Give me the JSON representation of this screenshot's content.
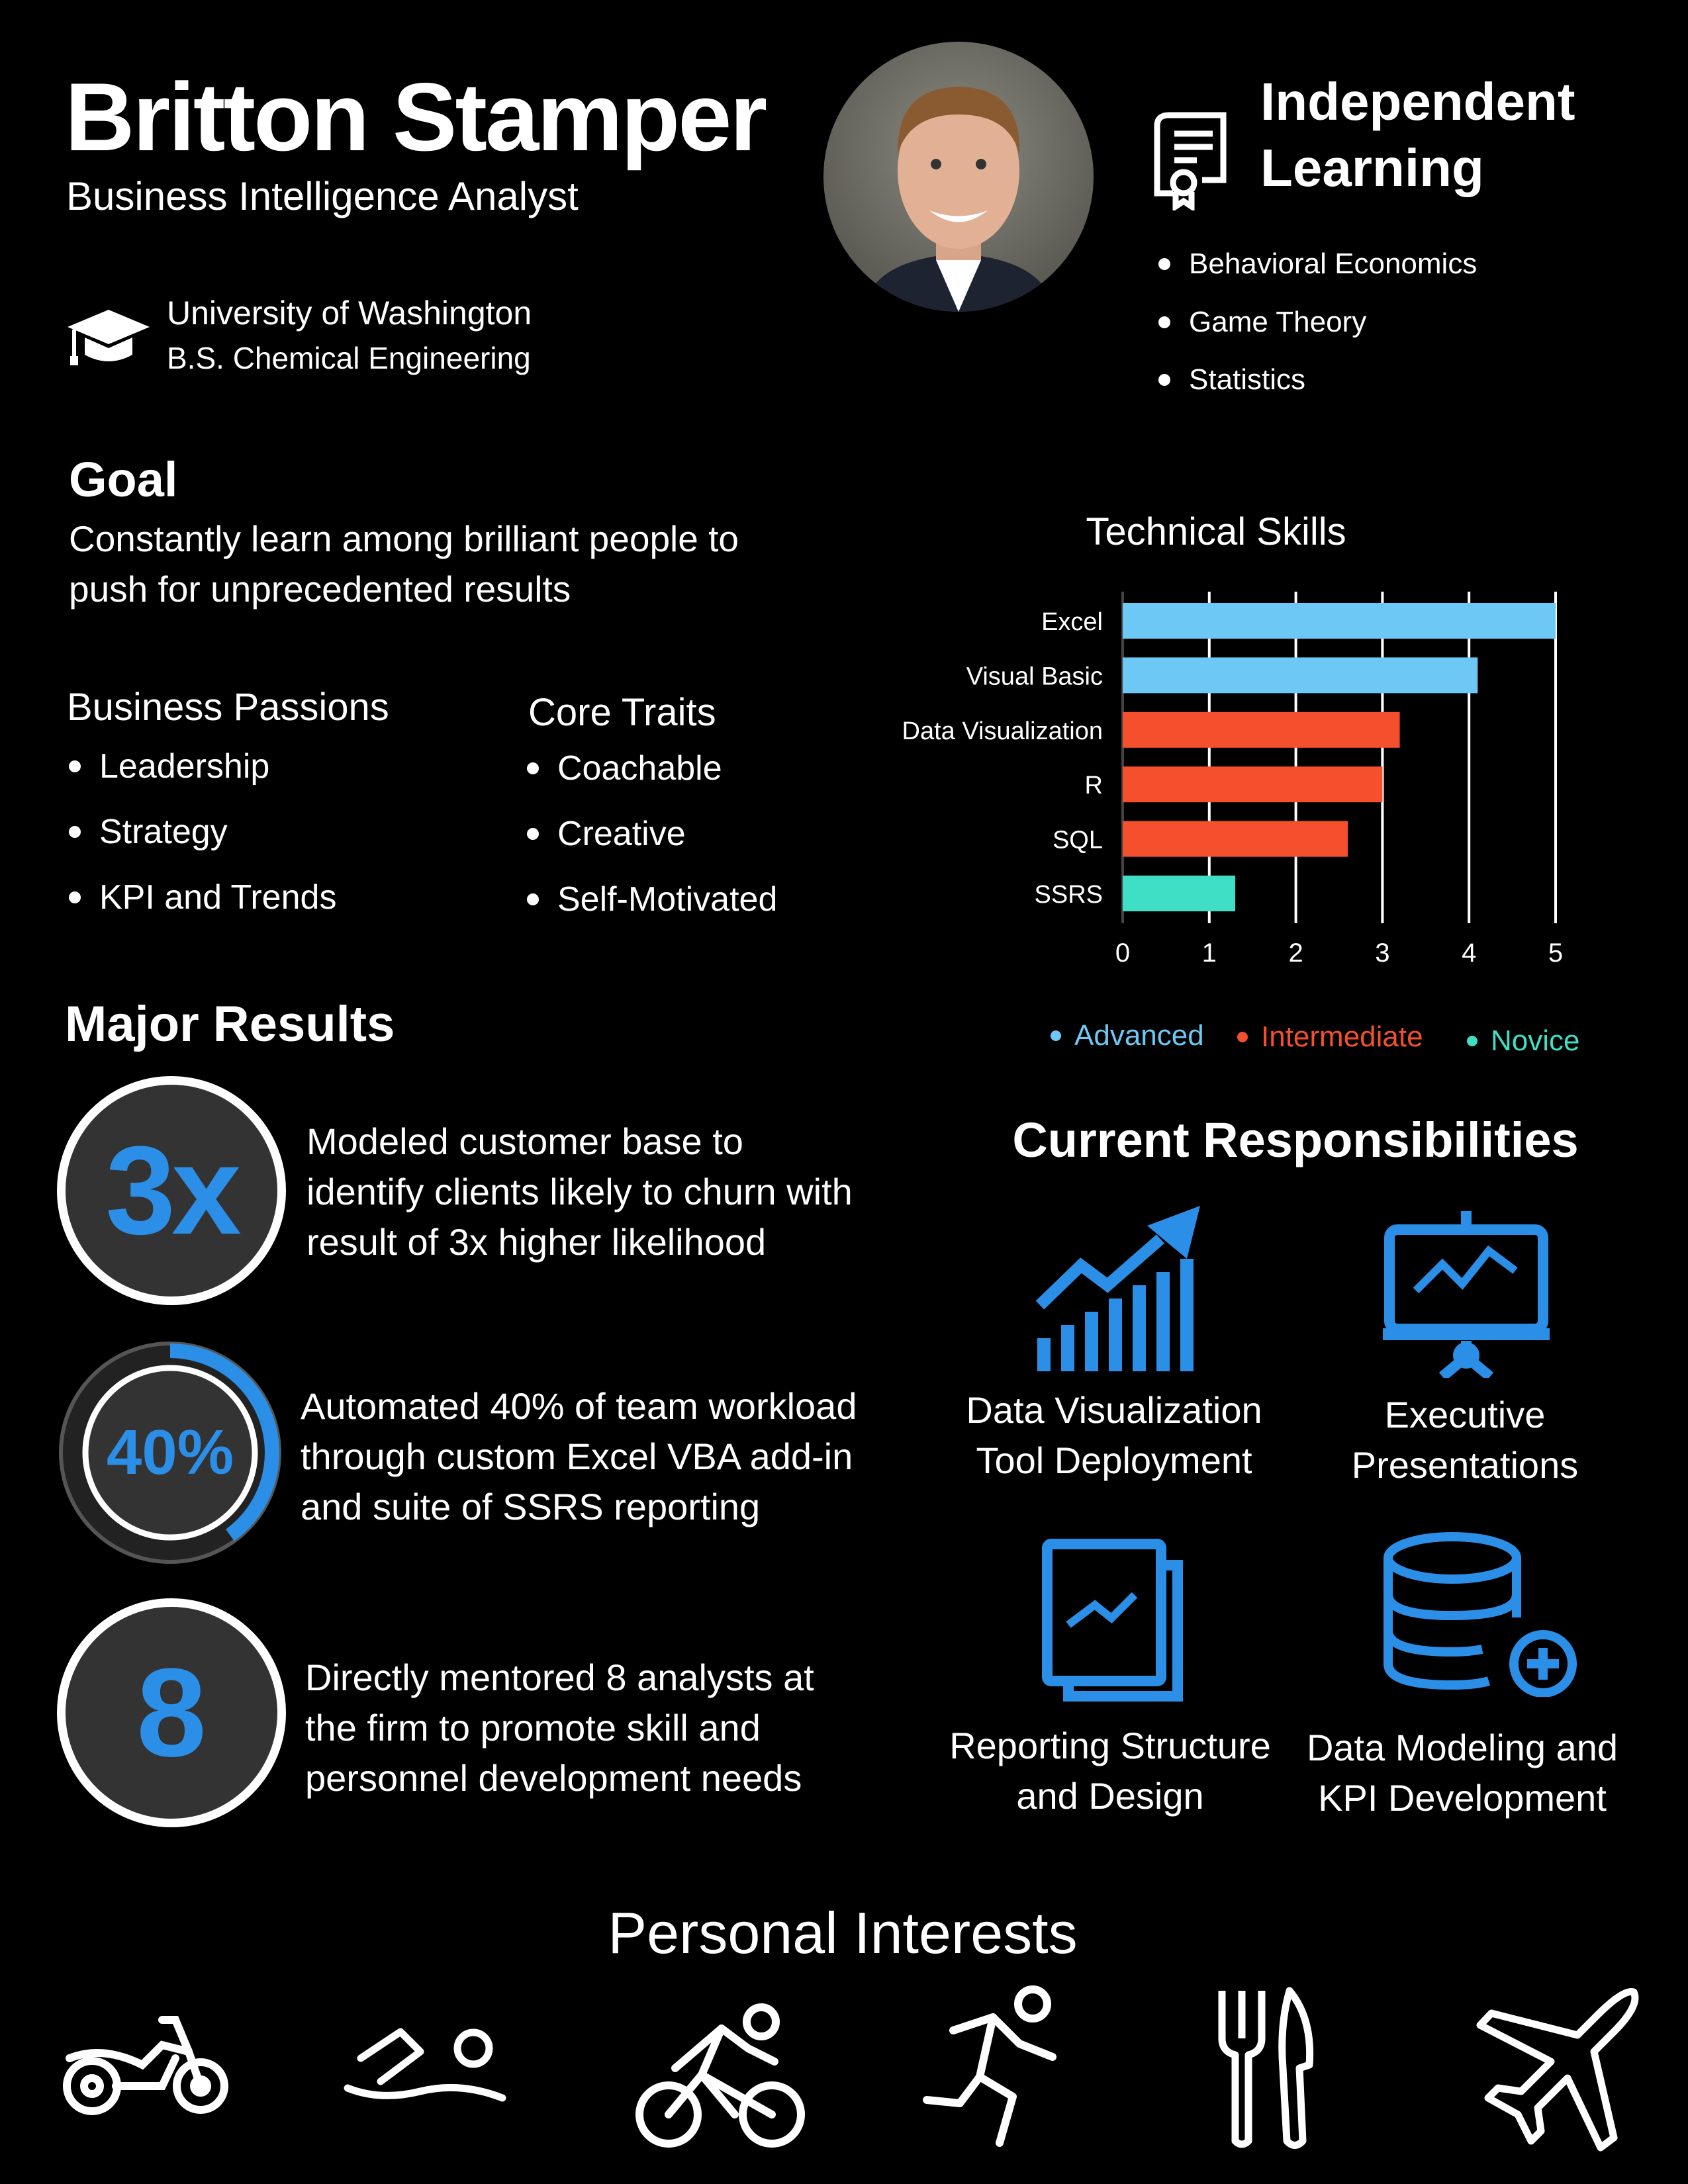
{
  "header": {
    "name": "Britton Stamper",
    "title": "Business Intelligence Analyst"
  },
  "education": {
    "school": "University of Washington",
    "degree": "B.S. Chemical Engineering",
    "icon": "graduation-cap-icon"
  },
  "independent_learning": {
    "title_line1": "Independent",
    "title_line2": "Learning",
    "icon": "certificate-icon",
    "items": [
      "Behavioral Economics",
      "Game Theory",
      "Statistics"
    ]
  },
  "goal": {
    "heading": "Goal",
    "line1": "Constantly learn among brilliant people to",
    "line2": "push for unprecedented results"
  },
  "passions": {
    "heading": "Business Passions",
    "items": [
      "Leadership",
      "Strategy",
      "KPI and Trends"
    ]
  },
  "traits": {
    "heading": "Core Traits",
    "items": [
      "Coachable",
      "Creative",
      "Self-Motivated"
    ]
  },
  "chart_data": {
    "type": "bar",
    "orientation": "horizontal",
    "title": "Technical Skills",
    "categories": [
      "Excel",
      "Visual Basic",
      "Data Visualization",
      "R",
      "SQL",
      "SSRS"
    ],
    "values": [
      5,
      4.1,
      3.2,
      3,
      2.6,
      1.3
    ],
    "levels": [
      "Advanced",
      "Advanced",
      "Intermediate",
      "Intermediate",
      "Intermediate",
      "Novice"
    ],
    "xlim": [
      0,
      5
    ],
    "xticks": [
      "0",
      "1",
      "2",
      "3",
      "4",
      "5"
    ],
    "grid": true,
    "legend": {
      "position": "bottom",
      "entries": [
        {
          "name": "Advanced",
          "color": "#6dc8f5"
        },
        {
          "name": "Intermediate",
          "color": "#f5502d"
        },
        {
          "name": "Novice",
          "color": "#3edfc4"
        }
      ]
    }
  },
  "results": {
    "heading": "Major Results",
    "items": [
      {
        "badge": "3x",
        "lines": [
          "Modeled customer base to",
          "identify clients likely to churn with",
          "result of 3x higher likelihood"
        ]
      },
      {
        "badge": "40%",
        "progress": 0.4,
        "lines": [
          "Automated 40% of team workload",
          "through custom Excel VBA add-in",
          "and suite of SSRS reporting"
        ]
      },
      {
        "badge": "8",
        "lines": [
          "Directly mentored 8 analysts at",
          "the firm to promote skill and",
          "personnel development needs"
        ]
      }
    ]
  },
  "responsibilities": {
    "heading": "Current Responsibilities",
    "items": [
      {
        "icon": "bar-chart-growth-icon",
        "line1": "Data Visualization",
        "line2": "Tool Deployment"
      },
      {
        "icon": "presentation-board-icon",
        "line1": "Executive",
        "line2": "Presentations"
      },
      {
        "icon": "report-document-icon",
        "line1": "Reporting Structure",
        "line2": "and Design"
      },
      {
        "icon": "database-add-icon",
        "line1": "Data Modeling and",
        "line2": "KPI Development"
      }
    ]
  },
  "interests": {
    "heading": "Personal Interests",
    "icons": [
      "motorcycle-icon",
      "swimming-icon",
      "cycling-icon",
      "running-icon",
      "fork-knife-icon",
      "airplane-icon"
    ]
  },
  "colors": {
    "accent": "#2b8fe8",
    "advanced": "#6dc8f5",
    "intermediate": "#f5502d",
    "novice": "#3edfc4",
    "badge_bg": "#333333"
  }
}
